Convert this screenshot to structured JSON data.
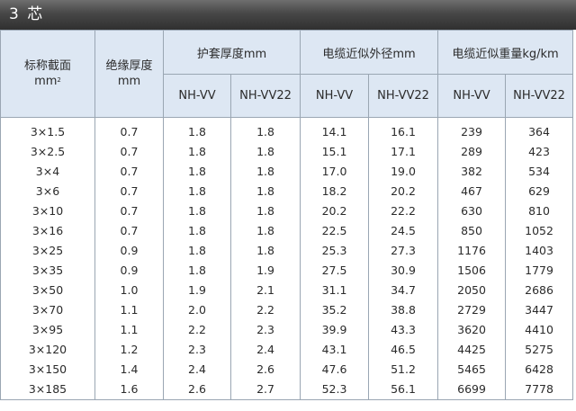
{
  "title": "3 芯",
  "headers": {
    "section": [
      "标称截面",
      "mm²"
    ],
    "insulation": [
      "绝缘厚度",
      "mm"
    ],
    "groups": [
      {
        "label": "护套厚度mm",
        "subs": [
          "NH-VV",
          "NH-VV22"
        ]
      },
      {
        "label": "电缆近似外径mm",
        "subs": [
          "NH-VV",
          "NH-VV22"
        ]
      },
      {
        "label": "电缆近似重量kg/km",
        "subs": [
          "NH-VV",
          "NH-VV22"
        ]
      }
    ]
  },
  "rows": [
    [
      "3×1.5",
      "0.7",
      "1.8",
      "1.8",
      "14.1",
      "16.1",
      "239",
      "364"
    ],
    [
      "3×2.5",
      "0.7",
      "1.8",
      "1.8",
      "15.1",
      "17.1",
      "289",
      "423"
    ],
    [
      "3×4",
      "0.7",
      "1.8",
      "1.8",
      "17.0",
      "19.0",
      "382",
      "534"
    ],
    [
      "3×6",
      "0.7",
      "1.8",
      "1.8",
      "18.2",
      "20.2",
      "467",
      "629"
    ],
    [
      "3×10",
      "0.7",
      "1.8",
      "1.8",
      "20.2",
      "22.2",
      "630",
      "810"
    ],
    [
      "3×16",
      "0.7",
      "1.8",
      "1.8",
      "22.5",
      "24.5",
      "850",
      "1052"
    ],
    [
      "3×25",
      "0.9",
      "1.8",
      "1.8",
      "25.3",
      "27.3",
      "1176",
      "1403"
    ],
    [
      "3×35",
      "0.9",
      "1.8",
      "1.9",
      "27.5",
      "30.9",
      "1506",
      "1779"
    ],
    [
      "3×50",
      "1.0",
      "1.9",
      "2.1",
      "31.1",
      "34.7",
      "2050",
      "2686"
    ],
    [
      "3×70",
      "1.1",
      "2.0",
      "2.2",
      "35.2",
      "38.8",
      "2729",
      "3447"
    ],
    [
      "3×95",
      "1.1",
      "2.2",
      "2.3",
      "39.9",
      "43.3",
      "3620",
      "4410"
    ],
    [
      "3×120",
      "1.2",
      "2.3",
      "2.4",
      "43.1",
      "46.5",
      "4425",
      "5275"
    ],
    [
      "3×150",
      "1.4",
      "2.4",
      "2.6",
      "47.6",
      "51.2",
      "5465",
      "6428"
    ],
    [
      "3×185",
      "1.6",
      "2.6",
      "2.7",
      "52.3",
      "56.1",
      "6699",
      "7778"
    ]
  ],
  "colors": {
    "title_bar": "#474747",
    "header_bg": "#dde7f3",
    "grid": "#9aa6b3",
    "text": "#2b2b2b"
  }
}
